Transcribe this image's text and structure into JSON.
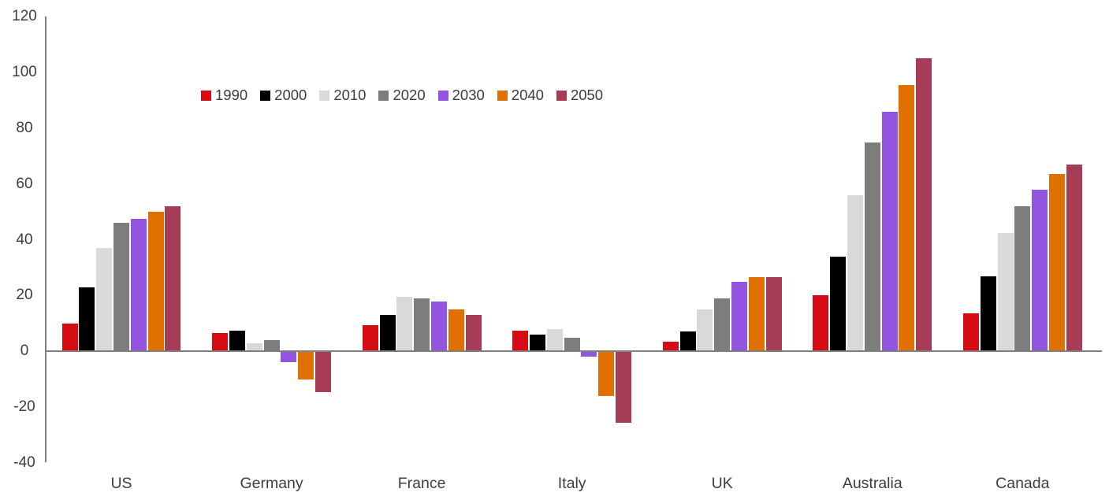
{
  "chart_data": {
    "type": "bar",
    "title": "",
    "categories": [
      "US",
      "Germany",
      "France",
      "Italy",
      "UK",
      "Australia",
      "Canada"
    ],
    "series": [
      {
        "name": "1990",
        "color": "#d60b13",
        "values": [
          10,
          6.5,
          9.5,
          7.5,
          3.5,
          20,
          13.5
        ]
      },
      {
        "name": "2000",
        "color": "#000000",
        "values": [
          23,
          7.5,
          13,
          6,
          7,
          34,
          27
        ]
      },
      {
        "name": "2010",
        "color": "#d9d9d9",
        "values": [
          37,
          3,
          19.5,
          8,
          15,
          56,
          42.5
        ]
      },
      {
        "name": "2020",
        "color": "#7d7d7d",
        "values": [
          46,
          4,
          19,
          5,
          19,
          75,
          52
        ]
      },
      {
        "name": "2030",
        "color": "#9355e0",
        "values": [
          47.5,
          -4,
          18,
          -2,
          25,
          86,
          58
        ]
      },
      {
        "name": "2040",
        "color": "#e07000",
        "values": [
          50,
          -10,
          15,
          -16,
          26.5,
          95.5,
          63.5
        ]
      },
      {
        "name": "2050",
        "color": "#a63c55",
        "values": [
          52,
          -14.5,
          13,
          -25.5,
          26.5,
          105,
          67
        ]
      }
    ],
    "ylim": [
      -40,
      120
    ],
    "yticks": [
      120,
      100,
      80,
      60,
      40,
      20,
      0,
      -20,
      -40
    ],
    "grid": false,
    "legend_position": "top-inset",
    "axis_color": "#808080",
    "text_color": "#3d3d3d",
    "background": "#ffffff",
    "xlabel": "",
    "ylabel": ""
  }
}
